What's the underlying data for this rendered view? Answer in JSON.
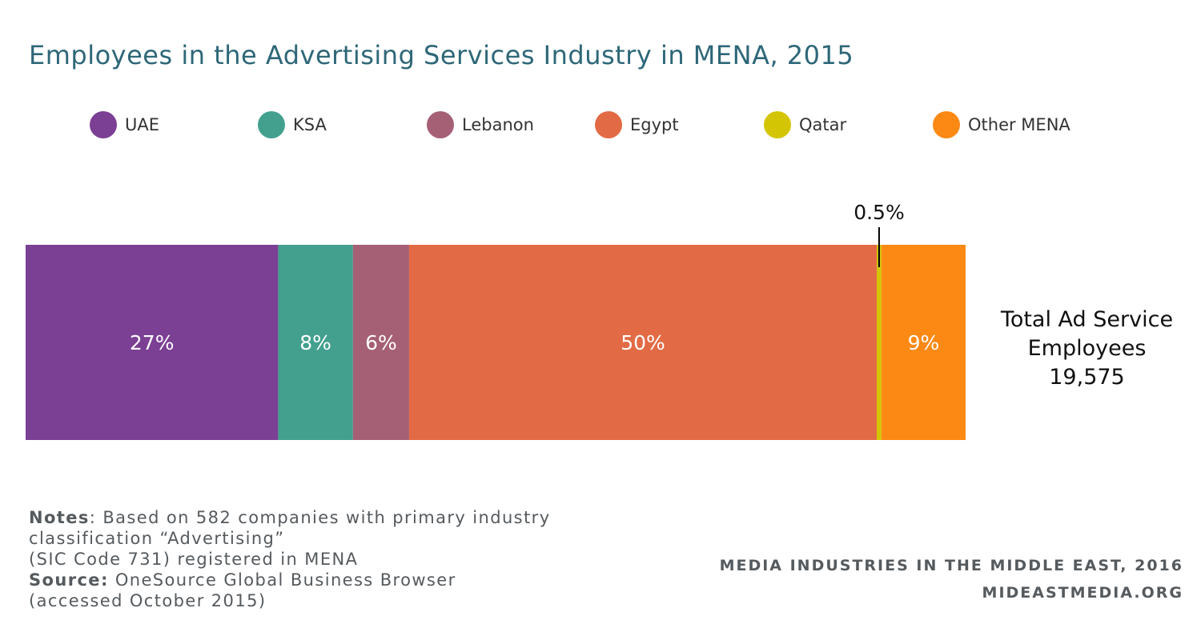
{
  "chart_data": {
    "type": "bar",
    "orientation": "horizontal-stacked",
    "title": "Employees in the Advertising Services Industry in MENA, 2015",
    "legend_position": "top",
    "series": [
      {
        "name": "UAE",
        "value": 27,
        "label": "27%",
        "color": "#7b3f94"
      },
      {
        "name": "KSA",
        "value": 8,
        "label": "8%",
        "color": "#43a08f"
      },
      {
        "name": "Lebanon",
        "value": 6,
        "label": "6%",
        "color": "#a56075"
      },
      {
        "name": "Egypt",
        "value": 50,
        "label": "50%",
        "color": "#e26b45"
      },
      {
        "name": "Qatar",
        "value": 0.5,
        "label": "0.5%",
        "color": "#d4c504"
      },
      {
        "name": "Other MENA",
        "value": 9,
        "label": "9%",
        "color": "#fb8914"
      }
    ],
    "total": {
      "line1": "Total Ad Service",
      "line2": "Employees",
      "value": "19,575"
    }
  },
  "notes": {
    "notes_label": "Notes",
    "notes_text_1": ": Based on 582 companies with primary industry",
    "notes_text_2": "classification “Advertising”",
    "notes_text_3": "(SIC Code 731) registered in MENA",
    "source_label": "Source:",
    "source_text_1": " OneSource Global Business Browser",
    "source_text_2": "(accessed October 2015)"
  },
  "credit": {
    "line1": "MEDIA INDUSTRIES IN THE MIDDLE EAST, 2016",
    "line2": "MIDEASTMEDIA.ORG"
  }
}
